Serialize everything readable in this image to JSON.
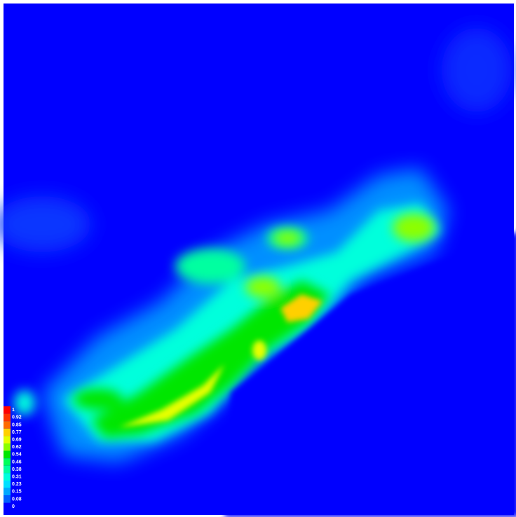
{
  "legend": {
    "items": [
      {
        "label": "1",
        "color": "#ff0000"
      },
      {
        "label": "0.92",
        "color": "#ff3300"
      },
      {
        "label": "0.85",
        "color": "#ff6a00"
      },
      {
        "label": "0.77",
        "color": "#ffd000"
      },
      {
        "label": "0.69",
        "color": "#e6ff00"
      },
      {
        "label": "0.62",
        "color": "#8cff00"
      },
      {
        "label": "0.54",
        "color": "#00e600"
      },
      {
        "label": "0.46",
        "color": "#00ff5a"
      },
      {
        "label": "0.38",
        "color": "#00ffa0"
      },
      {
        "label": "0.31",
        "color": "#00ffdc"
      },
      {
        "label": "0.23",
        "color": "#00e0ff"
      },
      {
        "label": "0.15",
        "color": "#00a8ff"
      },
      {
        "label": "0.08",
        "color": "#0060ff"
      },
      {
        "label": "0",
        "color": "#0000ff"
      }
    ]
  }
}
